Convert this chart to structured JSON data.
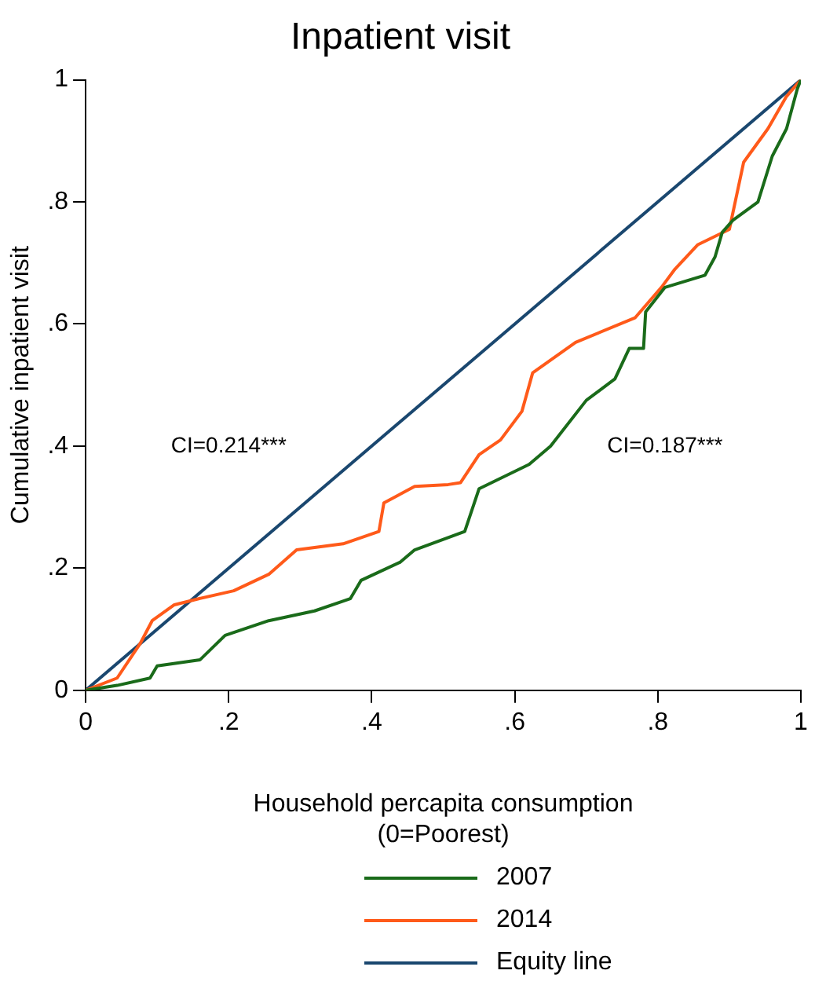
{
  "chart_data": {
    "type": "line",
    "title": "Inpatient visit",
    "xlabel": "Household percapita consumption\n(0=Poorest)",
    "ylabel": "Cumulative inpatient visit",
    "xlim": [
      0,
      1
    ],
    "ylim": [
      0,
      1
    ],
    "xticks": [
      0,
      {
        "value": 0.2,
        "label": ".2"
      },
      {
        "value": 0.4,
        "label": ".4"
      },
      {
        "value": 0.6,
        "label": ".6"
      },
      {
        "value": 0.8,
        "label": ".8"
      },
      1
    ],
    "yticks": [
      0,
      {
        "value": 0.2,
        "label": ".2"
      },
      {
        "value": 0.4,
        "label": ".4"
      },
      {
        "value": 0.6,
        "label": ".6"
      },
      {
        "value": 0.8,
        "label": ".8"
      },
      1
    ],
    "grid": false,
    "legend": "bottom",
    "marker": "none",
    "line_style": "solid",
    "annotations": [
      "CI=0.214***",
      "CI=0.187***"
    ],
    "series": [
      {
        "name": "2007",
        "color": "#1a6b1a",
        "x": [
          0,
          0.044,
          0.09,
          0.1,
          0.16,
          0.195,
          0.256,
          0.32,
          0.37,
          0.385,
          0.44,
          0.46,
          0.53,
          0.55,
          0.62,
          0.65,
          0.7,
          0.74,
          0.76,
          0.78,
          0.783,
          0.81,
          0.866,
          0.88,
          0.89,
          0.905,
          0.94,
          0.96,
          0.98,
          0.995,
          1
        ],
        "values": [
          0,
          0.008,
          0.02,
          0.04,
          0.05,
          0.09,
          0.114,
          0.13,
          0.15,
          0.18,
          0.21,
          0.23,
          0.26,
          0.33,
          0.37,
          0.4,
          0.475,
          0.51,
          0.56,
          0.56,
          0.62,
          0.66,
          0.68,
          0.71,
          0.75,
          0.77,
          0.8,
          0.875,
          0.92,
          0.985,
          1
        ]
      },
      {
        "name": "2014",
        "color": "#ff5a1a",
        "x": [
          0,
          0.044,
          0.076,
          0.093,
          0.124,
          0.158,
          0.207,
          0.256,
          0.295,
          0.36,
          0.41,
          0.417,
          0.46,
          0.507,
          0.524,
          0.55,
          0.58,
          0.61,
          0.625,
          0.685,
          0.768,
          0.805,
          0.824,
          0.856,
          0.9,
          0.92,
          0.954,
          0.98,
          1
        ],
        "values": [
          0,
          0.02,
          0.076,
          0.114,
          0.14,
          0.15,
          0.163,
          0.19,
          0.23,
          0.24,
          0.26,
          0.307,
          0.334,
          0.337,
          0.34,
          0.386,
          0.41,
          0.457,
          0.52,
          0.57,
          0.61,
          0.66,
          0.69,
          0.73,
          0.755,
          0.865,
          0.92,
          0.973,
          1
        ]
      },
      {
        "name": "Equity line",
        "color": "#1a476f",
        "x": [
          0,
          1
        ],
        "values": [
          0,
          1
        ]
      }
    ]
  }
}
